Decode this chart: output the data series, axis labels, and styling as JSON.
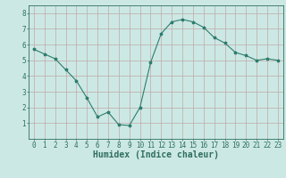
{
  "x": [
    0,
    1,
    2,
    3,
    4,
    5,
    6,
    7,
    8,
    9,
    10,
    11,
    12,
    13,
    14,
    15,
    16,
    17,
    18,
    19,
    20,
    21,
    22,
    23
  ],
  "y": [
    5.7,
    5.4,
    5.1,
    4.4,
    3.7,
    2.6,
    1.4,
    1.7,
    0.9,
    0.85,
    2.0,
    4.85,
    6.7,
    7.45,
    7.6,
    7.45,
    7.1,
    6.45,
    6.1,
    5.5,
    5.3,
    5.0,
    5.1,
    5.0
  ],
  "line_color": "#2e7d6e",
  "marker": "*",
  "marker_size": 2.5,
  "bg_color": "#cce8e4",
  "grid_color": "#c0a8a8",
  "axis_color": "#2e6e60",
  "xlabel": "Humidex (Indice chaleur)",
  "xlabel_fontsize": 7,
  "ylim": [
    0,
    8.5
  ],
  "xlim": [
    -0.5,
    23.5
  ],
  "yticks": [
    1,
    2,
    3,
    4,
    5,
    6,
    7,
    8
  ],
  "xticks": [
    0,
    1,
    2,
    3,
    4,
    5,
    6,
    7,
    8,
    9,
    10,
    11,
    12,
    13,
    14,
    15,
    16,
    17,
    18,
    19,
    20,
    21,
    22,
    23
  ],
  "tick_fontsize": 5.5
}
